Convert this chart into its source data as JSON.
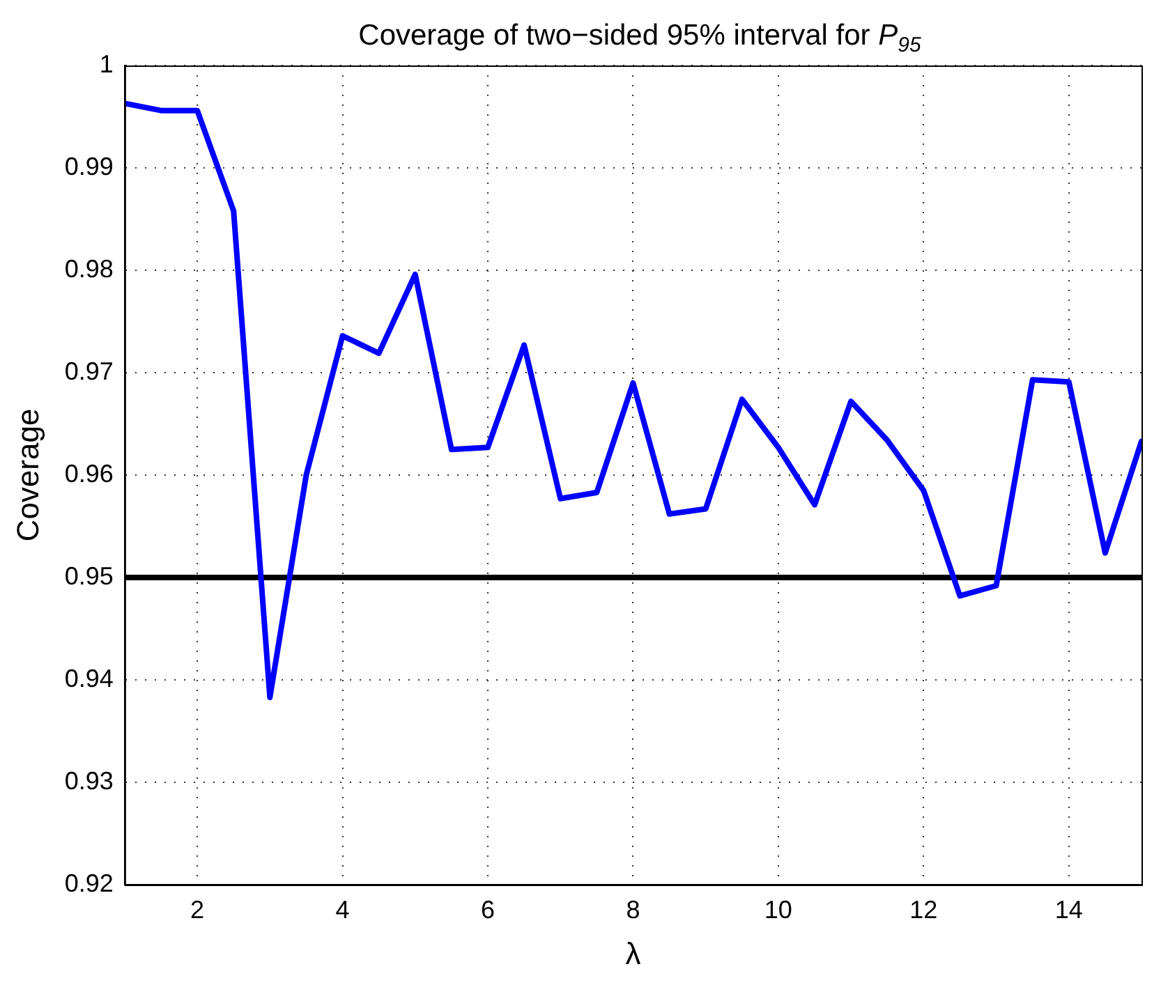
{
  "chart_data": {
    "type": "line",
    "title": "Coverage of two−sided 95% interval for  P$_{95}$",
    "xlabel": "λ",
    "ylabel": "Coverage",
    "x": [
      1,
      1.5,
      2,
      2.5,
      3,
      3.5,
      4,
      4.5,
      5,
      5.5,
      6,
      6.5,
      7,
      7.5,
      8,
      8.5,
      9,
      9.5,
      10,
      10.5,
      11,
      11.5,
      12,
      12.5,
      13,
      13.5,
      14,
      14.5,
      15
    ],
    "series": [
      {
        "color": "#0000ff",
        "values": [
          0.9963,
          0.9956,
          0.9956,
          0.9858,
          0.9383,
          0.96,
          0.9736,
          0.9719,
          0.9796,
          0.9625,
          0.9627,
          0.9727,
          0.9577,
          0.9583,
          0.969,
          0.9562,
          0.9567,
          0.9674,
          0.9627,
          0.9571,
          0.9672,
          0.9634,
          0.9585,
          0.9482,
          0.9492,
          0.9693,
          0.9691,
          0.9524,
          0.9633
        ]
      }
    ],
    "xlim": [
      1,
      15
    ],
    "xticks": [
      2,
      4,
      6,
      8,
      10,
      12,
      14
    ],
    "ylim": [
      0.92,
      1
    ],
    "yticks": [
      0.92,
      0.93,
      0.94,
      0.95,
      0.96,
      0.97,
      0.98,
      0.99,
      1
    ],
    "ref_lines": [
      {
        "axis": "y",
        "value": 0.95,
        "color": "#000000",
        "line_style": "solid"
      }
    ],
    "grid": true,
    "legend": false,
    "marker": "none",
    "line_style": "solid"
  }
}
